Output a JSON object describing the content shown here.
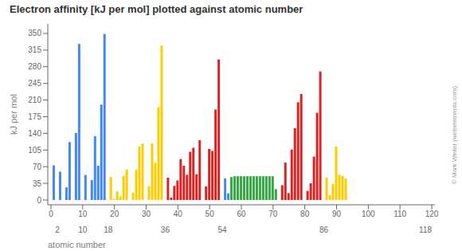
{
  "chart_data": {
    "type": "bar",
    "title": "Electron affinity [kJ per mol] plotted against atomic number",
    "ylabel": "kJ per mol",
    "xlabel": "atomic number",
    "annotations": [
      "© Mark Winter (webelements.com)"
    ],
    "grid": false,
    "xlim": [
      -1,
      121
    ],
    "xticks": [
      0,
      10,
      20,
      30,
      40,
      50,
      60,
      70,
      80,
      90,
      100,
      110,
      120
    ],
    "x2ticks": [
      2,
      10,
      18,
      36,
      54,
      86,
      118
    ],
    "ylim": [
      -10,
      370
    ],
    "yticks": [
      0,
      35,
      70,
      105,
      140,
      175,
      210,
      245,
      280,
      315,
      350
    ],
    "x": [
      1,
      2,
      3,
      4,
      5,
      6,
      7,
      8,
      9,
      10,
      11,
      12,
      13,
      14,
      15,
      16,
      17,
      18,
      19,
      20,
      21,
      22,
      23,
      24,
      25,
      26,
      27,
      28,
      29,
      30,
      31,
      32,
      33,
      34,
      35,
      36,
      37,
      38,
      39,
      40,
      41,
      42,
      43,
      44,
      45,
      46,
      47,
      48,
      49,
      50,
      51,
      52,
      53,
      54,
      55,
      56,
      57,
      58,
      59,
      60,
      61,
      62,
      63,
      64,
      65,
      66,
      67,
      68,
      69,
      70,
      71,
      72,
      73,
      74,
      75,
      76,
      77,
      78,
      79,
      80,
      81,
      82,
      83,
      84,
      85,
      86,
      87,
      88,
      89,
      90,
      91,
      92,
      93,
      94,
      95,
      96
    ],
    "values": [
      72.8,
      0,
      59.6,
      0,
      26.7,
      121.8,
      0,
      141.0,
      328.0,
      0,
      52.8,
      0,
      41.8,
      134.1,
      72.0,
      200.4,
      349.0,
      0,
      48.4,
      2.37,
      18.1,
      7.6,
      50.6,
      64.3,
      0,
      15.7,
      63.7,
      112.0,
      118.4,
      0,
      28.9,
      119.0,
      78.2,
      195.0,
      324.6,
      0,
      46.9,
      5.03,
      29.6,
      41.1,
      86.1,
      72.1,
      53.0,
      101.3,
      109.7,
      54.2,
      125.6,
      0,
      28.9,
      107.3,
      103.2,
      190.2,
      295.2,
      0,
      45.5,
      13.95,
      48.3,
      50.0,
      50.0,
      50.0,
      50.0,
      50.0,
      50.0,
      50.0,
      50.0,
      50.0,
      50.0,
      50.0,
      50.0,
      50.0,
      23.0,
      0,
      31.1,
      78.6,
      14.5,
      106.1,
      151.0,
      205.3,
      222.8,
      0,
      19.2,
      35.1,
      91.2,
      183.3,
      270.1,
      0,
      46.9,
      10.0,
      33.8,
      112.4,
      53.0,
      50.9,
      45.0,
      0,
      0,
      0
    ],
    "colors": [
      "#4488ee",
      "#4488ee",
      "#4488ee",
      "#4488ee",
      "#4488ee",
      "#4488ee",
      "#4488ee",
      "#4488ee",
      "#4488ee",
      "#4488ee",
      "#4488ee",
      "#4488ee",
      "#4488ee",
      "#4488ee",
      "#4488ee",
      "#4488ee",
      "#4488ee",
      "#4488ee",
      "#ffcc00",
      "#ffcc00",
      "#ffcc00",
      "#ffcc00",
      "#ffcc00",
      "#ffcc00",
      "#ffcc00",
      "#ffcc00",
      "#ffcc00",
      "#ffcc00",
      "#ffcc00",
      "#ffcc00",
      "#ffcc00",
      "#ffcc00",
      "#ffcc00",
      "#ffcc00",
      "#ffcc00",
      "#ffcc00",
      "#dd2222",
      "#dd2222",
      "#dd2222",
      "#dd2222",
      "#dd2222",
      "#dd2222",
      "#dd2222",
      "#dd2222",
      "#dd2222",
      "#dd2222",
      "#dd2222",
      "#dd2222",
      "#dd2222",
      "#dd2222",
      "#dd2222",
      "#dd2222",
      "#dd2222",
      "#dd2222",
      "#4488ee",
      "#4488ee",
      "#33aa44",
      "#33aa44",
      "#33aa44",
      "#33aa44",
      "#33aa44",
      "#33aa44",
      "#33aa44",
      "#33aa44",
      "#33aa44",
      "#33aa44",
      "#33aa44",
      "#33aa44",
      "#33aa44",
      "#33aa44",
      "#33aa44",
      "#dd2222",
      "#dd2222",
      "#dd2222",
      "#dd2222",
      "#dd2222",
      "#dd2222",
      "#dd2222",
      "#dd2222",
      "#dd2222",
      "#dd2222",
      "#dd2222",
      "#dd2222",
      "#dd2222",
      "#dd2222",
      "#dd2222",
      "#ffcc00",
      "#ffcc00",
      "#ffcc00",
      "#ffcc00",
      "#ffcc00",
      "#ffcc00",
      "#ffcc00",
      "#ffcc00",
      "#ffcc00",
      "#ffcc00"
    ]
  }
}
